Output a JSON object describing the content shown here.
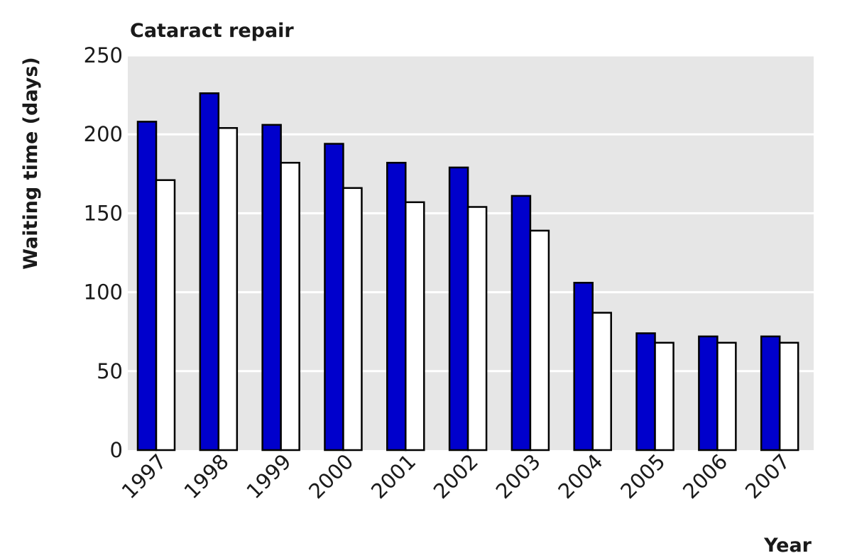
{
  "chart_data": {
    "type": "bar",
    "title": "Cataract repair",
    "xlabel": "Year",
    "ylabel": "Waiting time (days)",
    "ylim": [
      0,
      250
    ],
    "yticks": [
      0,
      50,
      100,
      150,
      200,
      250
    ],
    "grid": true,
    "categories": [
      "1997",
      "1998",
      "1999",
      "2000",
      "2001",
      "2002",
      "2003",
      "2004",
      "2005",
      "2006",
      "2007"
    ],
    "series": [
      {
        "values": [
          208,
          226,
          206,
          194,
          182,
          179,
          161,
          106,
          74,
          72,
          72
        ],
        "color": "#0000cc"
      },
      {
        "values": [
          171,
          204,
          182,
          166,
          157,
          154,
          139,
          87,
          68,
          68,
          68
        ],
        "color": "#ffffff"
      }
    ],
    "plot_background": "#e6e6e6"
  }
}
